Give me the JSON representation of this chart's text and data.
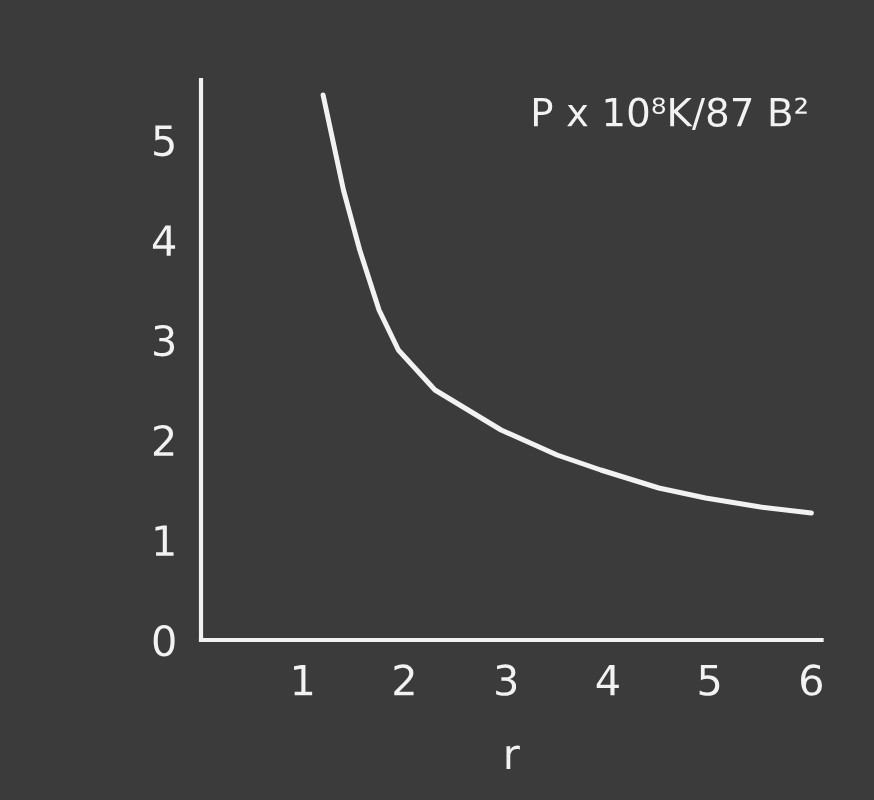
{
  "chart_data": {
    "type": "line",
    "xlabel": "r",
    "ylabel": "P x 10⁸K/87 B²",
    "x": [
      1.2,
      1.4,
      1.56,
      1.75,
      1.94,
      2.3,
      2.95,
      3.5,
      3.93,
      4.5,
      4.96,
      5.5,
      6.0
    ],
    "series": [
      {
        "color": "#f2f2f2",
        "values": [
          5.45,
          4.5,
          3.9,
          3.3,
          2.9,
          2.5,
          2.1,
          1.85,
          1.7,
          1.52,
          1.42,
          1.33,
          1.27
        ]
      }
    ],
    "xlim": [
      0,
      6.1
    ],
    "ylim": [
      0,
      5.6
    ],
    "xticks": [
      1,
      2,
      3,
      4,
      5,
      6
    ],
    "yticks": [
      0,
      1,
      2,
      3,
      4,
      5
    ],
    "grid": false,
    "marker": "none",
    "line_style": "solid"
  }
}
